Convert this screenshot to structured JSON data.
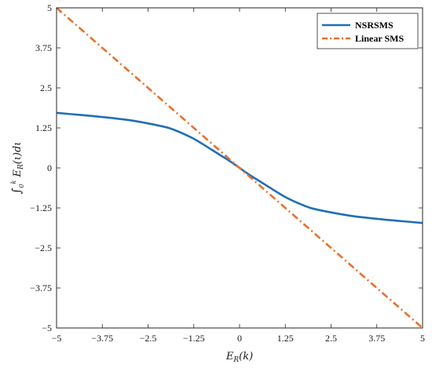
{
  "chart_data": {
    "type": "line",
    "xlabel": "E_R(k)",
    "ylabel": "∫_0^k E_R(ι)dι",
    "xlim": [
      -5,
      5
    ],
    "ylim": [
      -5,
      5
    ],
    "xticks": [
      "−5",
      "−3.75",
      "−2.5",
      "−1.25",
      "0",
      "1.25",
      "2.5",
      "3.75",
      "5"
    ],
    "yticks": [
      "5",
      "3.75",
      "2.5",
      "1.25",
      "0",
      "−1.25",
      "−2.5",
      "−3.75",
      "−5"
    ],
    "legend_position": "top-right",
    "series": [
      {
        "name": "NSRSMS",
        "color": "#1f6fb8",
        "style": "solid",
        "x": [
          -5,
          -4.5,
          -4,
          -3.5,
          -3,
          -2.5,
          -2,
          -1.75,
          -1.5,
          -1.25,
          -1,
          -0.75,
          -0.5,
          -0.25,
          0,
          0.25,
          0.5,
          0.75,
          1,
          1.25,
          1.5,
          1.75,
          2,
          2.5,
          3,
          3.5,
          4,
          4.5,
          5
        ],
        "y": [
          1.72,
          1.67,
          1.62,
          1.56,
          1.49,
          1.39,
          1.27,
          1.17,
          1.05,
          0.91,
          0.74,
          0.56,
          0.38,
          0.2,
          0,
          -0.2,
          -0.38,
          -0.56,
          -0.74,
          -0.91,
          -1.05,
          -1.17,
          -1.27,
          -1.39,
          -1.49,
          -1.56,
          -1.62,
          -1.67,
          -1.72
        ]
      },
      {
        "name": "Linear SMS",
        "color": "#e8702a",
        "style": "dashdot",
        "x": [
          -5,
          5
        ],
        "y": [
          5,
          -5
        ]
      }
    ]
  }
}
